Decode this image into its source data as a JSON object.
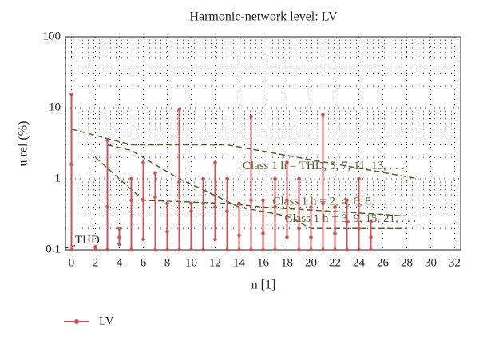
{
  "chart_data": {
    "type": "range",
    "title": "Harmonic-network level: LV",
    "xlabel": "n [1]",
    "ylabel": "u rel (%)",
    "xlim": [
      -0.5,
      32.5
    ],
    "ylim": [
      0.1,
      100
    ],
    "log_y": true,
    "xticks": [
      0,
      2,
      4,
      6,
      8,
      10,
      12,
      14,
      16,
      18,
      20,
      22,
      24,
      26,
      28,
      30,
      32
    ],
    "yticks": [
      0.1,
      1,
      10,
      100
    ],
    "grid": "dotted",
    "minor_grid": true,
    "legend": "bottom-left",
    "series": [
      {
        "name": "LV",
        "color": "#c8555a",
        "x": [
          0,
          2,
          3,
          4,
          5,
          6,
          7,
          8,
          9,
          10,
          11,
          12,
          13,
          14,
          15,
          16,
          17,
          18,
          19,
          20,
          21,
          22,
          23,
          24,
          25
        ],
        "max": [
          15.5,
          0.11,
          3.5,
          0.2,
          1.0,
          1.7,
          1.2,
          0.45,
          9.5,
          0.45,
          1.0,
          1.7,
          1.0,
          0.45,
          7.5,
          0.5,
          1.0,
          1.7,
          1.0,
          0.4,
          8.0,
          0.4,
          0.5,
          1.0,
          0.25
        ],
        "values": [
          1.6,
          0.11,
          0.4,
          0.15,
          0.5,
          0.5,
          0.55,
          0.18,
          0.9,
          0.35,
          0.45,
          0.4,
          0.35,
          0.16,
          0.5,
          0.17,
          0.4,
          0.5,
          0.2,
          0.15,
          0.45,
          0.17,
          0.25,
          0.2,
          0.15
        ],
        "min": [
          0.1,
          0.1,
          0.1,
          0.12,
          0.1,
          0.14,
          0.1,
          0.1,
          0.1,
          0.1,
          0.1,
          0.14,
          0.1,
          0.1,
          0.1,
          0.1,
          0.1,
          0.15,
          0.1,
          0.1,
          0.1,
          0.1,
          0.1,
          0.1,
          0.1
        ]
      }
    ],
    "limits": [
      {
        "label": "Class 1 h = THD, 5, 7, 11, 13, . . .",
        "color": "#4f6330",
        "x": [
          0,
          5,
          13,
          29
        ],
        "values": [
          5,
          3,
          3,
          1
        ]
      },
      {
        "label": "Class 1 h = 2, 4, 6, 8, . . .",
        "color": "#4f6330",
        "x": [
          2,
          6,
          13,
          16,
          28
        ],
        "values": [
          2,
          0.5,
          0.45,
          0.4,
          0.3
        ]
      },
      {
        "label": "Class 1 h = 3, 9, 15, 21, . . .",
        "color": "#4f6330",
        "x": [
          3,
          5,
          9,
          11,
          14,
          18,
          20,
          28
        ],
        "values": [
          3,
          2.5,
          1,
          0.7,
          0.4,
          0.3,
          0.2,
          0.2
        ]
      }
    ],
    "annotations": [
      "THD"
    ]
  }
}
